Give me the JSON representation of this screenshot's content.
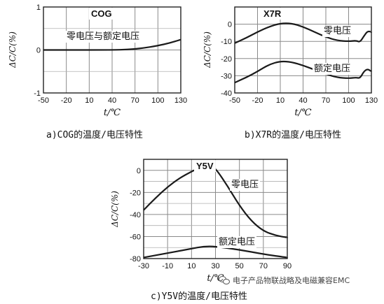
{
  "captions": {
    "a": "a)COG的温度/电压特性",
    "b": "b)X7R的温度/电压特性",
    "c": "c)Y5V的温度/电压特性"
  },
  "watermark": "电子产品物联战略及电磁兼容EMC",
  "chart_data": [
    {
      "type": "line",
      "title": "COG",
      "xlabel": "t/℃",
      "ylabel": "ΔC/C(%)",
      "xlim": [
        -50,
        130
      ],
      "ylim": [
        -1,
        1
      ],
      "xticks": [
        -50,
        -20,
        10,
        40,
        70,
        100,
        130
      ],
      "yticks": [
        1,
        0,
        -1
      ],
      "grid": true,
      "series": [
        {
          "name": "零电压与额定电压",
          "x": [
            -50,
            40,
            60,
            80,
            100,
            115,
            130
          ],
          "y": [
            0,
            0,
            0.01,
            0.04,
            0.1,
            0.16,
            0.24
          ]
        }
      ]
    },
    {
      "type": "line",
      "title": "X7R",
      "xlabel": "t/℃",
      "ylabel": "ΔC/C(%)",
      "xlim": [
        -50,
        130
      ],
      "ylim": [
        -40,
        10
      ],
      "xticks": [
        -50,
        -20,
        10,
        40,
        70,
        100,
        130
      ],
      "yticks": [
        0,
        -10,
        -20,
        -30,
        -40
      ],
      "grid": true,
      "series": [
        {
          "name": "零电压",
          "x": [
            -50,
            -35,
            -20,
            -5,
            10,
            25,
            40,
            55,
            70,
            85,
            100,
            110,
            115,
            120,
            125,
            130
          ],
          "y": [
            -11,
            -8,
            -4.5,
            -1.5,
            0.5,
            0.5,
            -1.5,
            -4.5,
            -7.5,
            -9.5,
            -10,
            -9.5,
            -10.5,
            -7,
            -4,
            -4.5
          ]
        },
        {
          "name": "额定电压",
          "x": [
            -50,
            -35,
            -20,
            -5,
            10,
            25,
            40,
            55,
            70,
            85,
            100,
            110,
            115,
            120,
            125,
            130
          ],
          "y": [
            -34,
            -31,
            -27.5,
            -23.5,
            -21.5,
            -22,
            -24,
            -26.5,
            -29,
            -31,
            -31.5,
            -31,
            -31.5,
            -27.5,
            -26,
            -27.5
          ]
        }
      ]
    },
    {
      "type": "line",
      "title": "Y5V",
      "xlabel": "t/℃",
      "ylabel": "ΔC/C(%)",
      "xlim": [
        -30,
        90
      ],
      "ylim": [
        -80,
        10
      ],
      "xticks": [
        -30,
        -10,
        10,
        30,
        50,
        70,
        90
      ],
      "yticks": [
        0,
        -20,
        -40,
        -60,
        -80
      ],
      "grid": true,
      "series": [
        {
          "name": "零电压",
          "x": [
            -30,
            -20,
            -10,
            0,
            10,
            20,
            25,
            30,
            40,
            50,
            60,
            70,
            80,
            90
          ],
          "y": [
            -36,
            -25,
            -15,
            -7,
            -1,
            4,
            5,
            2,
            -14,
            -32,
            -46,
            -55,
            -59,
            -61
          ]
        },
        {
          "name": "额定电压",
          "x": [
            -30,
            -10,
            10,
            20,
            30,
            50,
            70,
            90
          ],
          "y": [
            -79,
            -75,
            -71,
            -69,
            -69,
            -72,
            -76,
            -79
          ]
        }
      ]
    }
  ]
}
